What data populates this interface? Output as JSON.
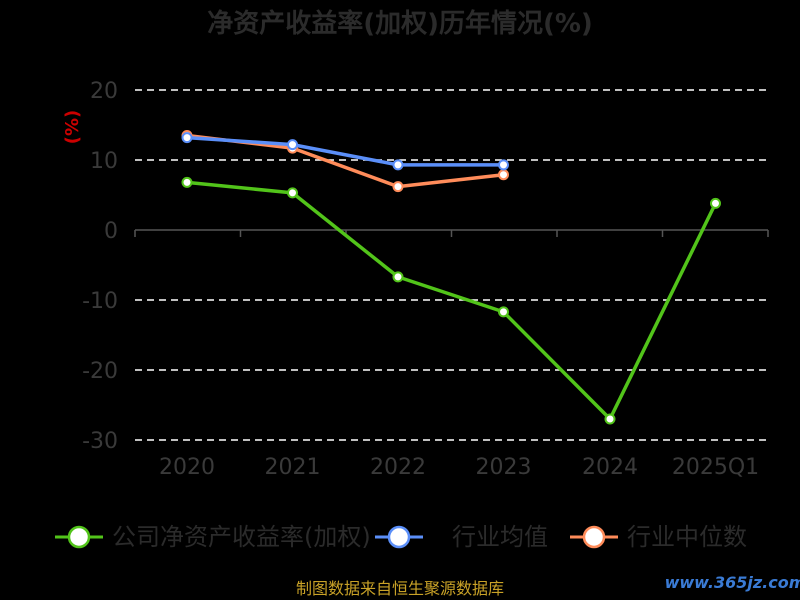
{
  "chart_data": {
    "type": "line",
    "title": "净资产收益率(加权)历年情况(%)",
    "ylabel": "(%)",
    "xlabel": "",
    "categories": [
      "2020",
      "2021",
      "2022",
      "2023",
      "2024",
      "2025Q1"
    ],
    "ylim": [
      -30,
      20
    ],
    "yticks": [
      20,
      10,
      0,
      -10,
      -20,
      -30
    ],
    "grid": true,
    "grid_style": "dashed",
    "legend_position": "bottom",
    "series": [
      {
        "name": "公司净资产收益率(加权)",
        "color": "#52c41a",
        "values": [
          6.8,
          5.3,
          -6.7,
          -11.7,
          -27,
          3.8
        ]
      },
      {
        "name": "行业均值",
        "color": "#5b8ff9",
        "values": [
          13.2,
          12.2,
          9.3,
          9.3,
          null,
          null
        ]
      },
      {
        "name": "行业中位数",
        "color": "#ff8c5a",
        "values": [
          13.5,
          11.7,
          6.2,
          7.9,
          null,
          null
        ]
      }
    ]
  },
  "source": "制图数据来自恒生聚源数据库",
  "watermark": "www.365jz.com"
}
